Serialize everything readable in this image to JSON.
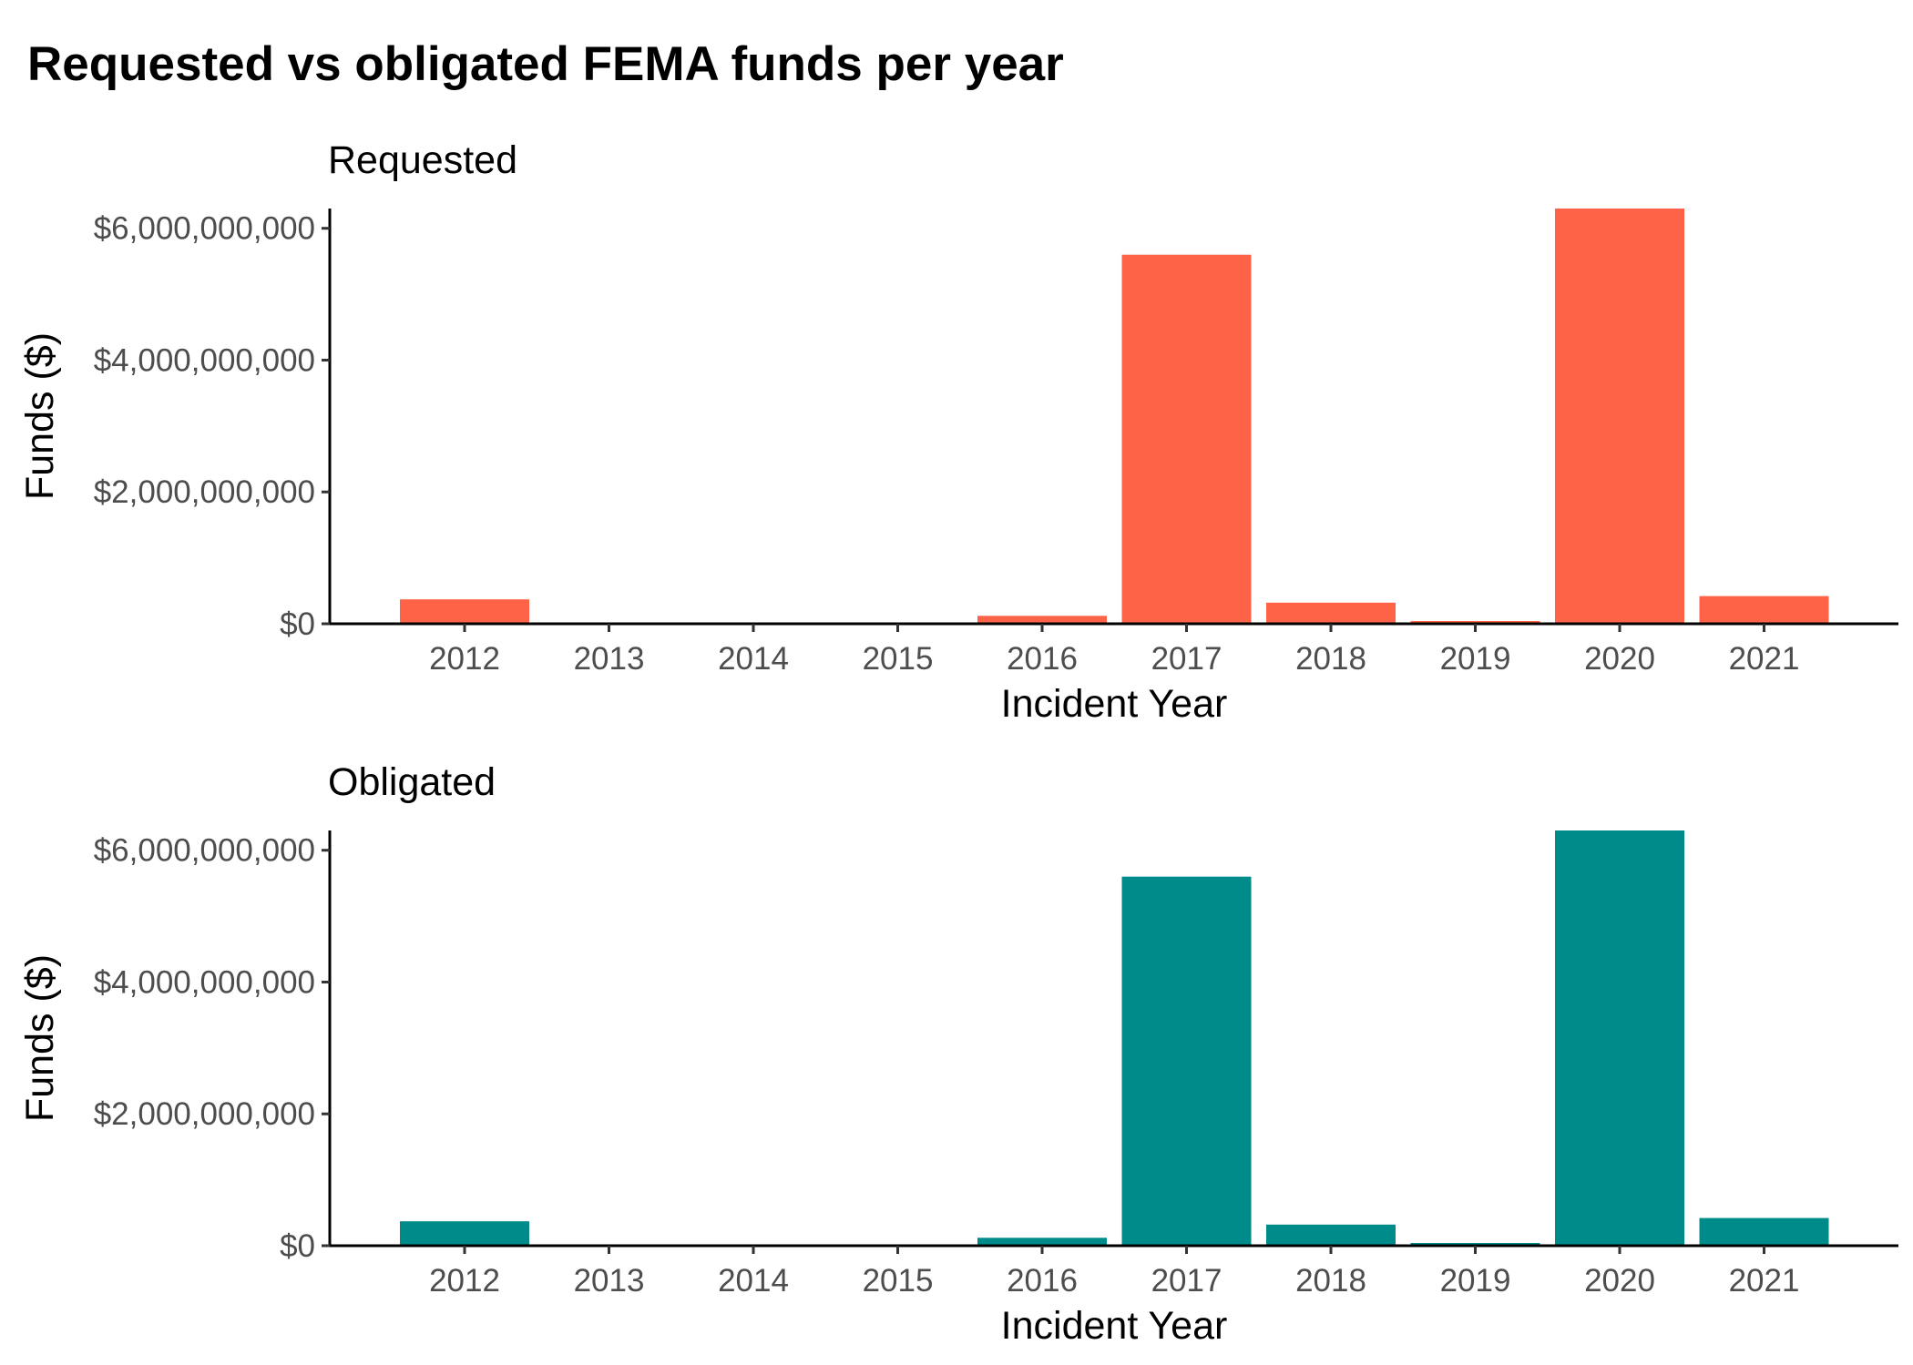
{
  "title": "Requested vs obligated FEMA funds per year",
  "chart_data": [
    {
      "type": "bar",
      "subtitle": "Requested",
      "xlabel": "Incident Year",
      "ylabel": "Funds ($)",
      "color": "#FF6347",
      "categories": [
        "2012",
        "2013",
        "2014",
        "2015",
        "2016",
        "2017",
        "2018",
        "2019",
        "2020",
        "2021"
      ],
      "values": [
        370000000,
        0,
        0,
        0,
        120000000,
        5600000000,
        320000000,
        30000000,
        6300000000,
        420000000
      ],
      "ylim": [
        0,
        6300000000
      ],
      "yticks": [
        0,
        2000000000,
        4000000000,
        6000000000
      ],
      "ytick_labels": [
        "$0",
        "$2,000,000,000",
        "$4,000,000,000",
        "$6,000,000,000"
      ],
      "grid": false,
      "legend": "none"
    },
    {
      "type": "bar",
      "subtitle": "Obligated",
      "xlabel": "Incident Year",
      "ylabel": "Funds ($)",
      "color": "#008B8B",
      "categories": [
        "2012",
        "2013",
        "2014",
        "2015",
        "2016",
        "2017",
        "2018",
        "2019",
        "2020",
        "2021"
      ],
      "values": [
        370000000,
        0,
        0,
        0,
        120000000,
        5600000000,
        320000000,
        30000000,
        6300000000,
        420000000
      ],
      "ylim": [
        0,
        6300000000
      ],
      "yticks": [
        0,
        2000000000,
        4000000000,
        6000000000
      ],
      "ytick_labels": [
        "$0",
        "$2,000,000,000",
        "$4,000,000,000",
        "$6,000,000,000"
      ],
      "grid": false,
      "legend": "none"
    }
  ]
}
